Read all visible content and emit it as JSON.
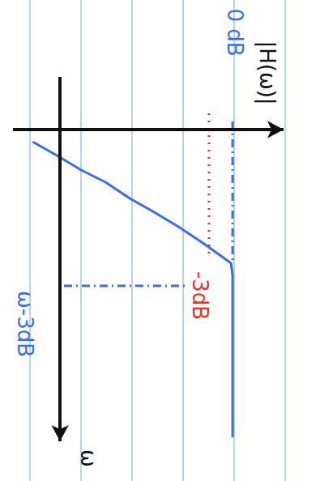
{
  "chart_data": {
    "type": "line",
    "x_label": "|H(ω)|",
    "y_label": "ω",
    "xlim": [
      -28,
      6.5
    ],
    "ylim": [
      -6.5,
      38.5
    ],
    "tick_labels": false,
    "axis_crossing": {
      "x": -22,
      "y": 0
    },
    "series": [
      {
        "color": "#3a6ee8",
        "line_style": "solid",
        "x": [
          -25.5,
          -22.4,
          -19.3,
          -16.2,
          -13.1,
          -10.0,
          -6.9,
          -3.8,
          -1.2,
          -0.2,
          0,
          0,
          0
        ],
        "values": [
          1.5,
          3.2,
          5.0,
          6.5,
          8.5,
          10.2,
          12.0,
          14.0,
          15.8,
          16.5,
          18.0,
          24.0,
          38.0
        ]
      }
    ],
    "guides": [
      {
        "x": [
          -3,
          -3
        ],
        "y": [
          -2,
          16
        ],
        "color": "#e8302a",
        "line_style": "dotted"
      },
      {
        "x": [
          0,
          0
        ],
        "y": [
          -1,
          16.5
        ],
        "color": "#3a6ee8",
        "line_style": "dashdot"
      },
      {
        "x": [
          -21.5,
          -6.0
        ],
        "y": [
          19.3,
          19.3
        ],
        "color": "#3a6ee8",
        "line_style": "dashdot"
      }
    ],
    "annotations": [
      {
        "text": "0 dB",
        "x": 0.3,
        "y": -12,
        "color": "#3a6ee8"
      },
      {
        "text": "-3dB",
        "x": -4.1,
        "y": 20.5,
        "color": "#e8302a"
      },
      {
        "text": "ω-3dB",
        "x": -26.4,
        "y": 24,
        "color": "#3a6ee8"
      }
    ]
  }
}
